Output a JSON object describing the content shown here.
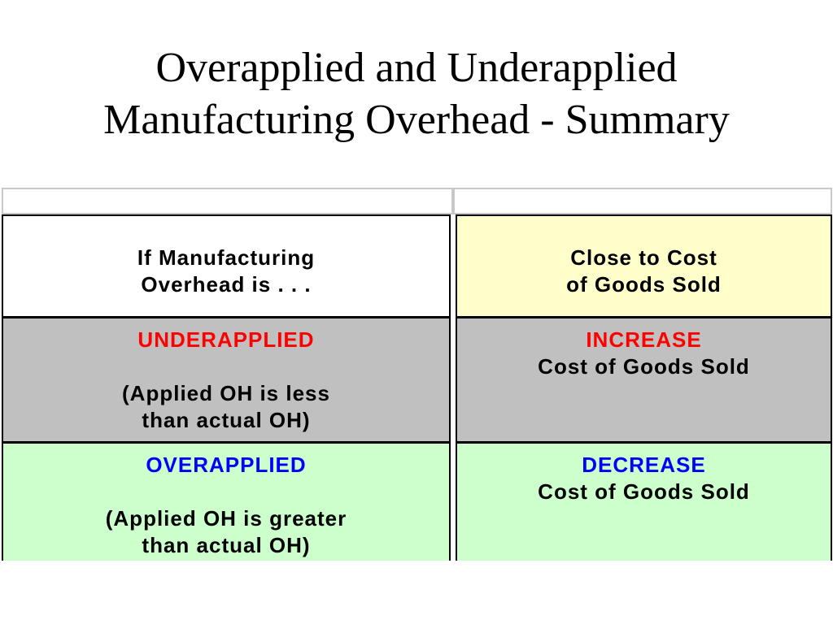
{
  "title": {
    "line1": "Overapplied and Underapplied",
    "line2": "Manufacturing Overhead - Summary"
  },
  "table": {
    "header": {
      "left": [
        "If Manufacturing",
        "Overhead is . . ."
      ],
      "right": [
        "Close to Cost",
        "of Goods Sold"
      ]
    },
    "rows": [
      {
        "status": "UNDERAPPLIED",
        "status_color": "#ff0000",
        "explain": [
          "(Applied OH is less",
          "than actual OH)"
        ],
        "action": "INCREASE",
        "action_color": "#ff0000",
        "target": "Cost of Goods Sold",
        "background": "#c0c0c0"
      },
      {
        "status": "OVERAPPLIED",
        "status_color": "#0000ff",
        "explain": [
          "(Applied OH is greater",
          "than actual OH)"
        ],
        "action": "DECREASE",
        "action_color": "#0000ff",
        "target": "Cost of Goods Sold",
        "background": "#ccffcc"
      }
    ],
    "header_colors": {
      "left": "#ffffff",
      "right": "#ffffcc"
    }
  }
}
